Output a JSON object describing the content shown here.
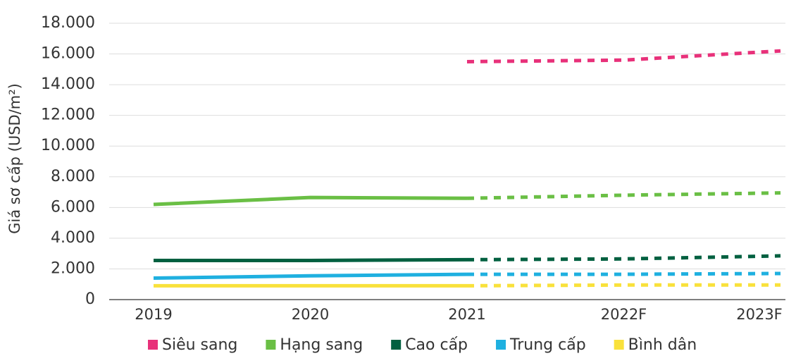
{
  "chart_data": {
    "type": "line",
    "y_label": "Giá sơ cấp (USD/m²)",
    "categories": [
      "2019",
      "2020",
      "2021",
      "2022F",
      "2023F"
    ],
    "series": [
      {
        "name": "Siêu sang",
        "color": "#e8317a",
        "values": [
          null,
          null,
          15500,
          15600,
          16200
        ]
      },
      {
        "name": "Hạng sang",
        "color": "#6abf45",
        "values": [
          6200,
          6650,
          6600,
          6800,
          6950
        ]
      },
      {
        "name": "Cao cấp",
        "color": "#006040",
        "values": [
          2550,
          2550,
          2600,
          2650,
          2850
        ]
      },
      {
        "name": "Trung cấp",
        "color": "#1fb0e0",
        "values": [
          1400,
          1550,
          1650,
          1650,
          1700
        ]
      },
      {
        "name": "Bình dân",
        "color": "#f9e13b",
        "values": [
          900,
          900,
          900,
          950,
          950
        ]
      }
    ],
    "ylim": [
      0,
      18000
    ],
    "yticks": [
      0,
      {
        "value": 2000,
        "label": "2.000"
      },
      {
        "value": 4000,
        "label": "4.000"
      },
      {
        "value": 6000,
        "label": "6.000"
      },
      {
        "value": 8000,
        "label": "8.000"
      },
      {
        "value": 10000,
        "label": "10.000"
      },
      {
        "value": 12000,
        "label": "12.000"
      },
      {
        "value": 14000,
        "label": "14.000"
      },
      {
        "value": 16000,
        "label": "16.000"
      },
      {
        "value": 18000,
        "label": "18.000"
      }
    ],
    "grid": true
  }
}
